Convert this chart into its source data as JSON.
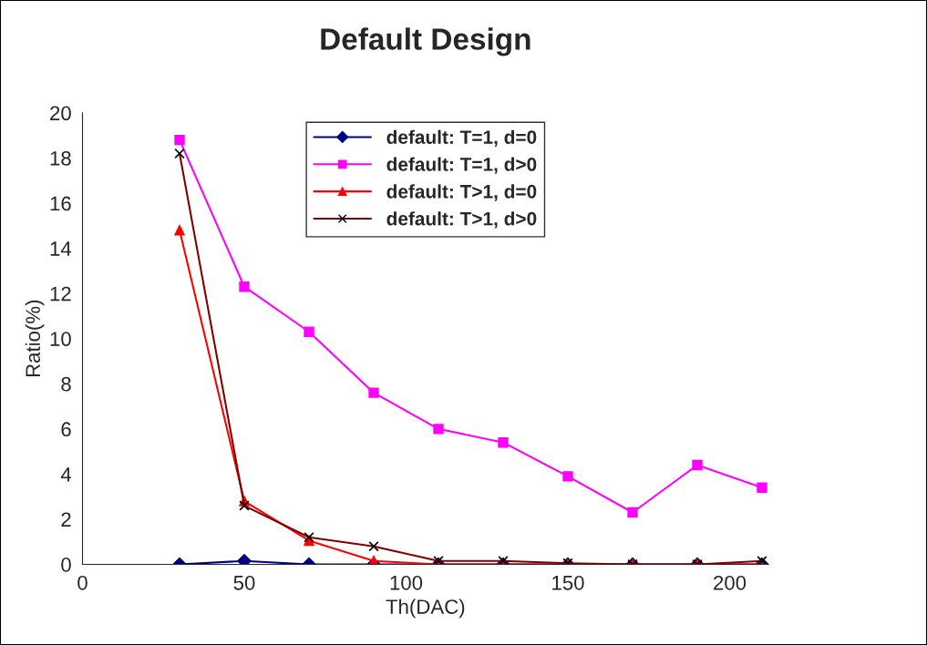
{
  "chart_data": {
    "type": "line",
    "title": "Default Design",
    "xlabel": "Th(DAC)",
    "ylabel": "Ratio(%)",
    "x": [
      30,
      50,
      70,
      90,
      110,
      130,
      150,
      170,
      190,
      210
    ],
    "series": [
      {
        "name": "default: T=1, d=0",
        "color": "#000080",
        "marker": "diamond",
        "values": [
          0,
          0.15,
          0,
          0,
          0,
          0,
          0,
          0,
          0,
          0
        ]
      },
      {
        "name": "default: T=1, d>0",
        "color": "#ff00ff",
        "marker": "square",
        "values": [
          18.8,
          12.3,
          10.3,
          7.6,
          6.0,
          5.4,
          3.9,
          2.3,
          4.4,
          3.4
        ]
      },
      {
        "name": "default: T>1, d=0",
        "color": "#ff0000",
        "marker": "triangle",
        "values": [
          14.8,
          2.8,
          1.05,
          0.15,
          0,
          0,
          0,
          0,
          0,
          0
        ]
      },
      {
        "name": "default: T>1, d>0",
        "color": "#800000",
        "marker": "cross",
        "values": [
          18.2,
          2.6,
          1.2,
          0.8,
          0.15,
          0.15,
          0.05,
          0,
          0,
          0.15
        ]
      }
    ],
    "xlim": [
      0,
      212
    ],
    "xticks": [
      0,
      50,
      100,
      150,
      200
    ],
    "ylim": [
      0,
      20
    ],
    "yticks": [
      0,
      2,
      4,
      6,
      8,
      10,
      12,
      14,
      16,
      18,
      20
    ],
    "grid": false,
    "legend": "top"
  }
}
